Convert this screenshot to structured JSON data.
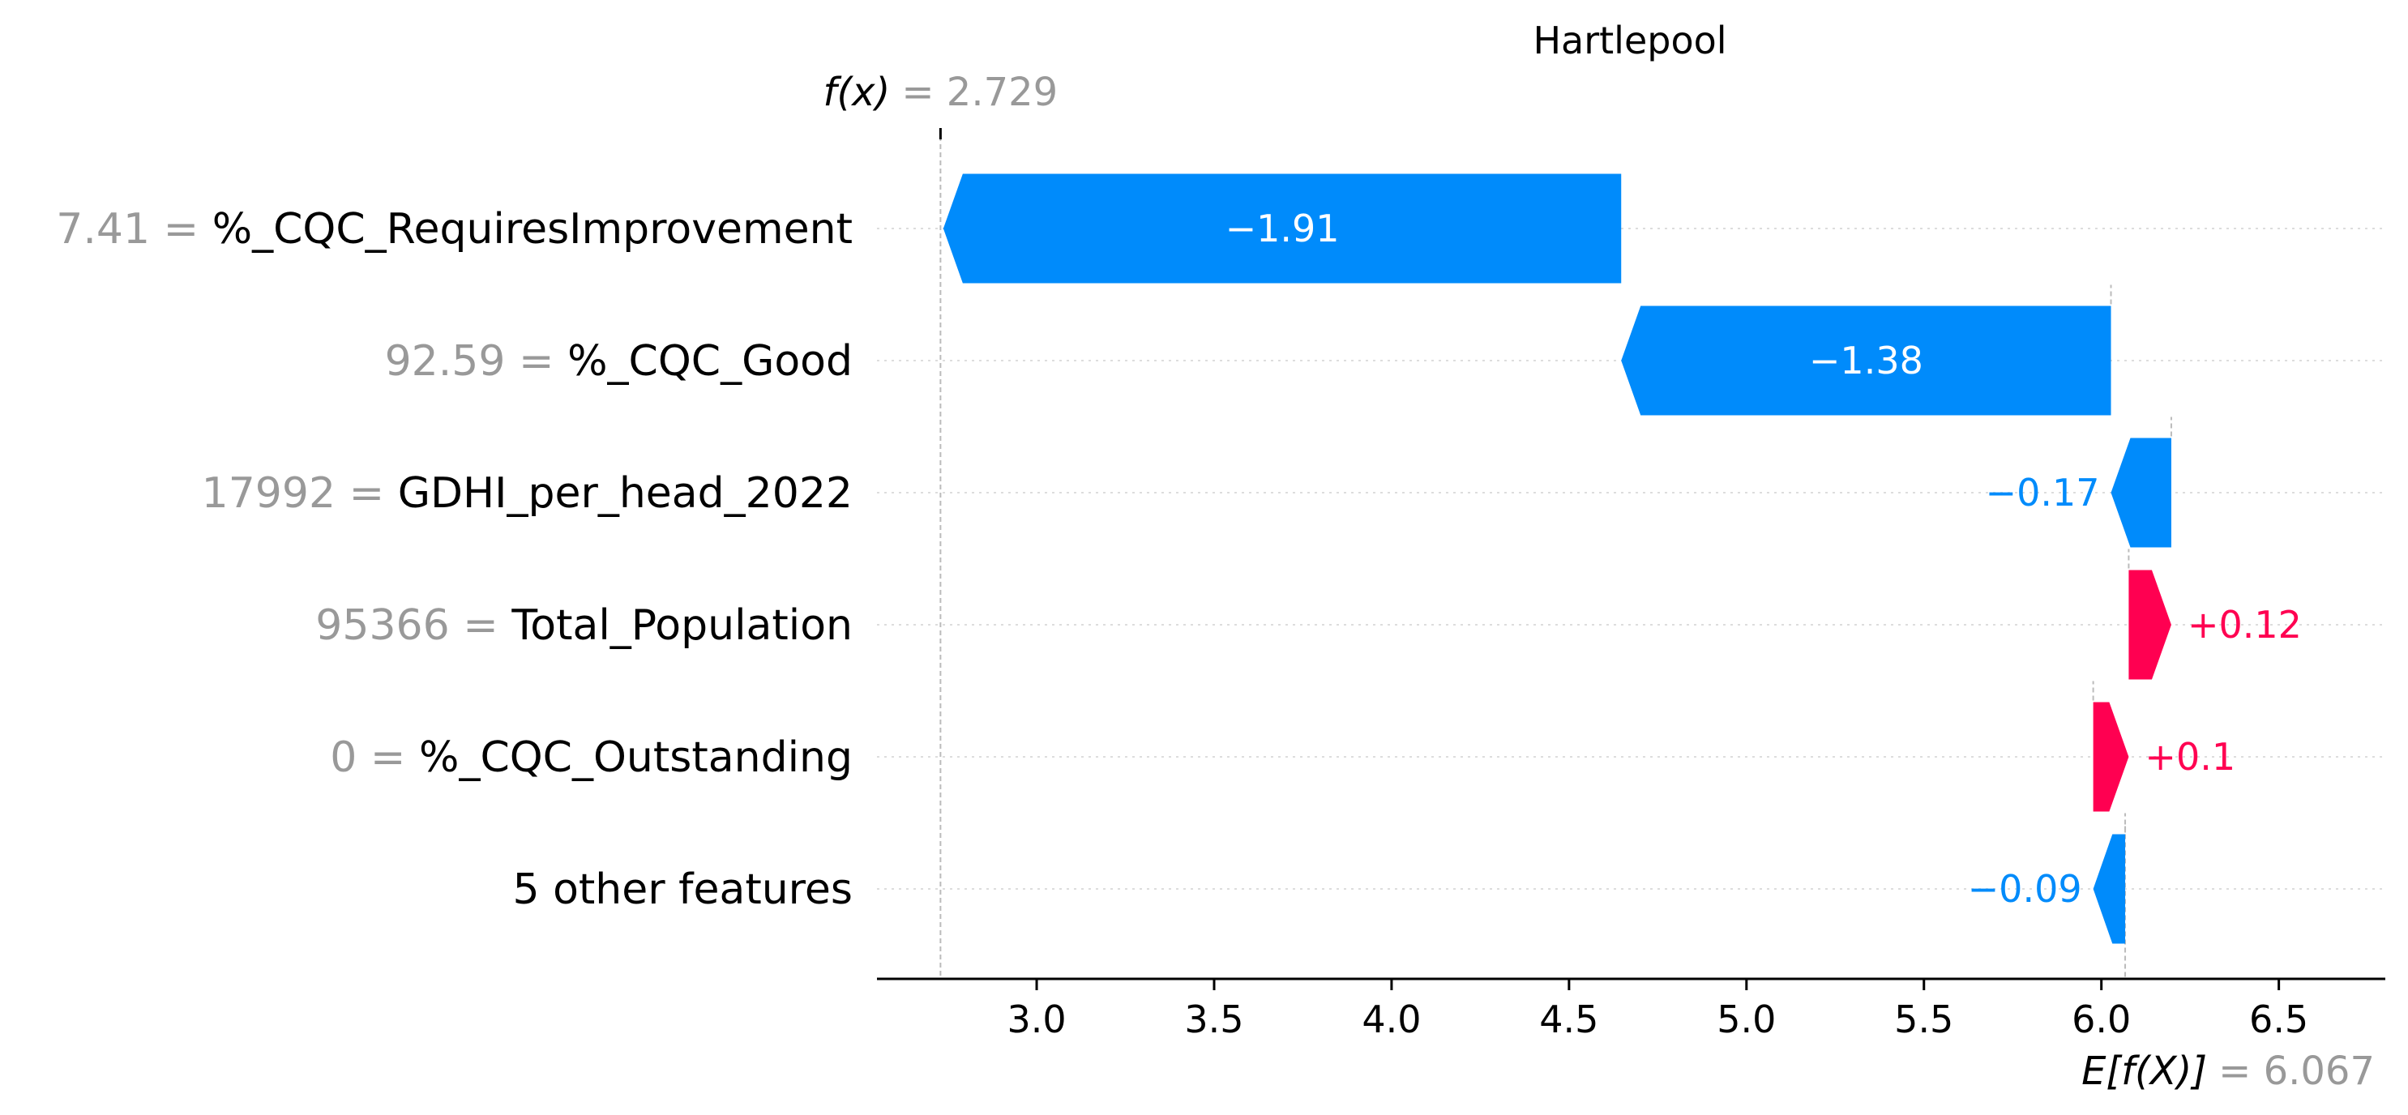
{
  "chart_data": {
    "type": "waterfall",
    "title": "Hartlepool",
    "base_value": 6.067,
    "output_value": 2.729,
    "base_value_label": "= 6.067",
    "output_value_label": "= 2.729",
    "base_symbol": "E[f(X)]",
    "output_symbol": "f(x)",
    "xlim": [
      2.55,
      6.8
    ],
    "xticks": [
      3.0,
      3.5,
      4.0,
      4.5,
      5.0,
      5.5,
      6.0,
      6.5
    ],
    "xtick_labels": [
      "3.0",
      "3.5",
      "4.0",
      "4.5",
      "5.0",
      "5.5",
      "6.0",
      "6.5"
    ],
    "features": [
      {
        "value": "7.41",
        "name": "%_CQC_RequiresImprovement",
        "contribution": -1.91,
        "label": "−1.91"
      },
      {
        "value": "92.59",
        "name": "%_CQC_Good",
        "contribution": -1.38,
        "label": "−1.38"
      },
      {
        "value": "17992",
        "name": "GDHI_per_head_2022",
        "contribution": -0.17,
        "label": "−0.17"
      },
      {
        "value": "95366",
        "name": "Total_Population",
        "contribution": 0.12,
        "label": "+0.12"
      },
      {
        "value": "0",
        "name": "%_CQC_Outstanding",
        "contribution": 0.1,
        "label": "+0.1"
      },
      {
        "value": "",
        "name": "5 other features",
        "contribution": -0.09,
        "label": "−0.09"
      }
    ],
    "colors": {
      "negative": "#008bfb",
      "positive": "#ff0051",
      "value_text": "#999999"
    }
  }
}
